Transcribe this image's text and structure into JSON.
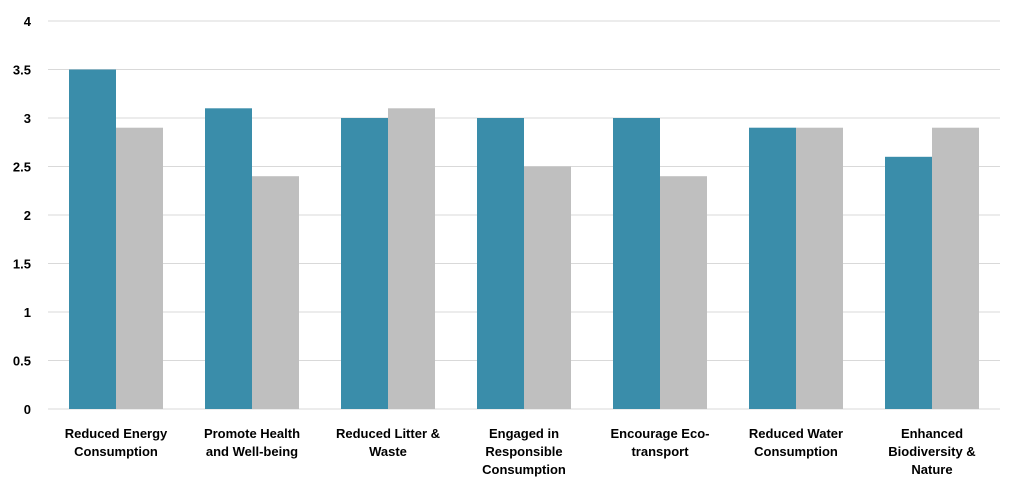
{
  "chart_data": {
    "type": "bar",
    "title": "",
    "xlabel": "",
    "ylabel": "",
    "ylim": [
      0,
      4
    ],
    "yticks": [
      "0",
      "0.5",
      "1",
      "1.5",
      "2",
      "2.5",
      "3",
      "3.5",
      "4"
    ],
    "grid": true,
    "legend": "none",
    "categories": [
      [
        "Reduced Energy",
        "Consumption"
      ],
      [
        "Promote Health",
        "and Well-being"
      ],
      [
        "Reduced Litter &",
        "Waste"
      ],
      [
        "Engaged in",
        "Responsible",
        "Consumption"
      ],
      [
        "Encourage Eco-",
        "transport"
      ],
      [
        "Reduced Water",
        "Consumption"
      ],
      [
        "Enhanced",
        "Biodiversity &",
        "Nature"
      ]
    ],
    "series": [
      {
        "values": [
          3.5,
          3.1,
          3.0,
          3.0,
          3.0,
          2.9,
          2.6
        ]
      },
      {
        "values": [
          2.9,
          2.4,
          3.1,
          2.5,
          2.4,
          2.9,
          2.9
        ]
      }
    ],
    "colors": [
      "#3a8daa",
      "#bfbfbf"
    ]
  }
}
